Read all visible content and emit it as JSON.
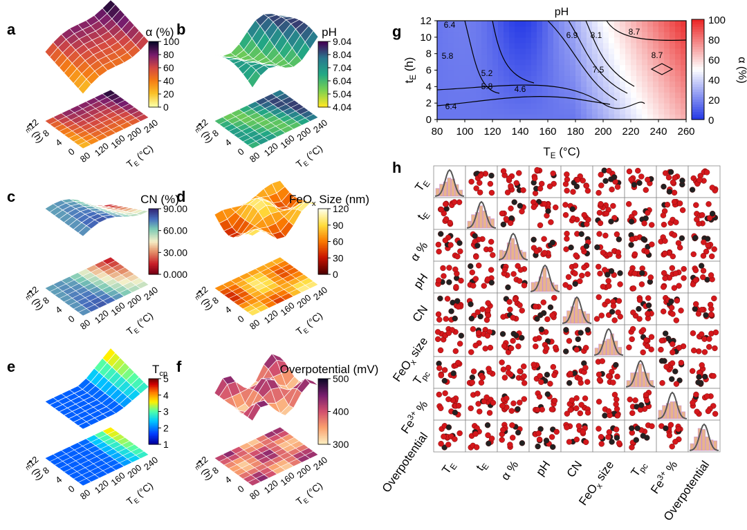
{
  "panels_3d": [
    {
      "letter": "a",
      "title": "α (%)",
      "cmap": "inferno",
      "ticks": [
        "100",
        "80",
        "60",
        "40",
        "20",
        "0"
      ],
      "x_label": "T",
      "x_sub": "E",
      "x_unit": " (°C)",
      "y_label": "t",
      "y_sub": "E",
      "y_unit": " (h)",
      "x_ticks": [
        "80",
        "120",
        "160",
        "200",
        "240"
      ],
      "y_ticks": [
        "0",
        "4",
        "8",
        "12"
      ]
    },
    {
      "letter": "b",
      "title": "pH",
      "cmap": "viridis",
      "ticks": [
        "9.04",
        "8.04",
        "7.04",
        "6.04",
        "5.04",
        "4.04"
      ],
      "x_label": "T",
      "x_sub": "E",
      "x_unit": " (°C)",
      "y_label": "t",
      "y_sub": "E",
      "y_unit": " (h)",
      "x_ticks": [
        "80",
        "120",
        "160",
        "200",
        "240"
      ],
      "y_ticks": [
        "0",
        "4",
        "8",
        "12"
      ]
    },
    {
      "letter": "c",
      "title": "CN (%)",
      "cmap": "cn",
      "ticks": [
        "90.00",
        "60.00",
        "30.00",
        "0.000"
      ],
      "x_label": "T",
      "x_sub": "E",
      "x_unit": " (°C)",
      "y_label": "t",
      "y_sub": "E",
      "y_unit": " (h)",
      "x_ticks": [
        "80",
        "120",
        "160",
        "200",
        "240"
      ],
      "y_ticks": [
        "0",
        "4",
        "8",
        "12"
      ]
    },
    {
      "letter": "d",
      "title": "FeO",
      "title_sub": "x",
      "title_rest": " Size (nm)",
      "cmap": "hot",
      "ticks": [
        "120",
        "90",
        "60",
        "30",
        "0"
      ],
      "x_label": "T",
      "x_sub": "E",
      "x_unit": " (°C)",
      "y_label": "t",
      "y_sub": "E",
      "y_unit": " (h)",
      "x_ticks": [
        "80",
        "120",
        "160",
        "200",
        "240"
      ],
      "y_ticks": [
        "0",
        "4",
        "8",
        "12"
      ]
    },
    {
      "letter": "e",
      "title": "T",
      "title_sub": "cp",
      "cmap": "jet",
      "ticks": [
        "5",
        "4",
        "3",
        "2",
        "1"
      ],
      "x_label": "T",
      "x_sub": "E",
      "x_unit": " (°C)",
      "y_label": "t",
      "y_sub": "E",
      "y_unit": " (h)",
      "x_ticks": [
        "80",
        "120",
        "160",
        "200",
        "240"
      ],
      "y_ticks": [
        "0",
        "4",
        "8",
        "12"
      ]
    },
    {
      "letter": "f",
      "title": "Overpotential (mV)",
      "cmap": "magma_r",
      "ticks": [
        "500",
        "400",
        "300"
      ],
      "x_label": "T",
      "x_sub": "E",
      "x_unit": " (°C)",
      "y_label": "t",
      "y_sub": "E",
      "y_unit": " (h)",
      "x_ticks": [
        "80",
        "120",
        "160",
        "200",
        "240"
      ],
      "y_ticks": [
        "0",
        "4",
        "8",
        "12"
      ]
    }
  ],
  "panel_g": {
    "letter": "g",
    "title": "pH",
    "x_label": "T",
    "x_sub": "E",
    "x_unit": " (°C)",
    "y_label": "t",
    "y_sub": "E",
    "y_unit": " (h)",
    "x_ticks": [
      "80",
      "100",
      "120",
      "140",
      "160",
      "180",
      "200",
      "220",
      "240",
      "260"
    ],
    "y_ticks": [
      "0",
      "2",
      "4",
      "6",
      "8",
      "10",
      "12"
    ],
    "cbar_label": "α (%)",
    "cbar_ticks": [
      "100",
      "80",
      "60",
      "40",
      "20",
      "0"
    ],
    "contour_labels": [
      "6.4",
      "5.8",
      "5.2",
      "5.8",
      "4.6",
      "6.4",
      "6.9",
      "8.1",
      "8.7",
      "8.7",
      "7.5"
    ]
  },
  "panel_h": {
    "letter": "h",
    "labels": [
      {
        "t": "T",
        "s": "E",
        "p": ""
      },
      {
        "t": "t",
        "s": "E",
        "p": ""
      },
      {
        "t": "α %",
        "s": "",
        "p": ""
      },
      {
        "t": "pH",
        "s": "",
        "p": ""
      },
      {
        "t": "CN",
        "s": "",
        "p": ""
      },
      {
        "t": "FeO",
        "s": "x",
        "p": " size"
      },
      {
        "t": "T",
        "s": "pc",
        "p": ""
      },
      {
        "t": "Fe",
        "sup": "3+",
        "p": " %"
      },
      {
        "t": "Overpotential",
        "s": "",
        "p": ""
      }
    ]
  },
  "chart_data": [
    {
      "type": "heatmap",
      "panel": "a",
      "title": "α (%)",
      "xlabel": "TE (°C)",
      "ylabel": "tE (h)",
      "xlim": [
        80,
        260
      ],
      "ylim": [
        0,
        12
      ],
      "zlim": [
        0,
        100
      ]
    },
    {
      "type": "heatmap",
      "panel": "b",
      "title": "pH",
      "xlabel": "TE (°C)",
      "ylabel": "tE (h)",
      "xlim": [
        80,
        260
      ],
      "ylim": [
        0,
        12
      ],
      "zlim": [
        4.04,
        9.04
      ]
    },
    {
      "type": "heatmap",
      "panel": "c",
      "title": "CN (%)",
      "xlabel": "TE (°C)",
      "ylabel": "tE (h)",
      "xlim": [
        80,
        260
      ],
      "ylim": [
        0,
        12
      ],
      "zlim": [
        0,
        90
      ]
    },
    {
      "type": "heatmap",
      "panel": "d",
      "title": "FeOx Size (nm)",
      "xlabel": "TE (°C)",
      "ylabel": "tE (h)",
      "xlim": [
        80,
        260
      ],
      "ylim": [
        0,
        12
      ],
      "zlim": [
        0,
        120
      ]
    },
    {
      "type": "heatmap",
      "panel": "e",
      "title": "Tcp",
      "xlabel": "TE (°C)",
      "ylabel": "tE (h)",
      "xlim": [
        80,
        260
      ],
      "ylim": [
        0,
        12
      ],
      "zlim": [
        1,
        5
      ]
    },
    {
      "type": "heatmap",
      "panel": "f",
      "title": "Overpotential (mV)",
      "xlabel": "TE (°C)",
      "ylabel": "tE (h)",
      "xlim": [
        80,
        260
      ],
      "ylim": [
        0,
        12
      ],
      "zlim": [
        300,
        550
      ]
    },
    {
      "type": "heatmap",
      "panel": "g",
      "title": "pH",
      "xlabel": "TE (°C)",
      "ylabel": "tE (h)",
      "colorbar": "α (%)",
      "xlim": [
        80,
        260
      ],
      "ylim": [
        0,
        12
      ],
      "zlim": [
        0,
        100
      ],
      "contour_levels": [
        4.6,
        5.2,
        5.8,
        6.4,
        6.9,
        7.5,
        8.1,
        8.7
      ]
    },
    {
      "type": "scatter",
      "panel": "h",
      "title": "pair plot",
      "variables": [
        "TE",
        "tE",
        "α %",
        "pH",
        "CN",
        "FeOx size",
        "Tpc",
        "Fe3+ %",
        "Overpotential"
      ]
    }
  ]
}
